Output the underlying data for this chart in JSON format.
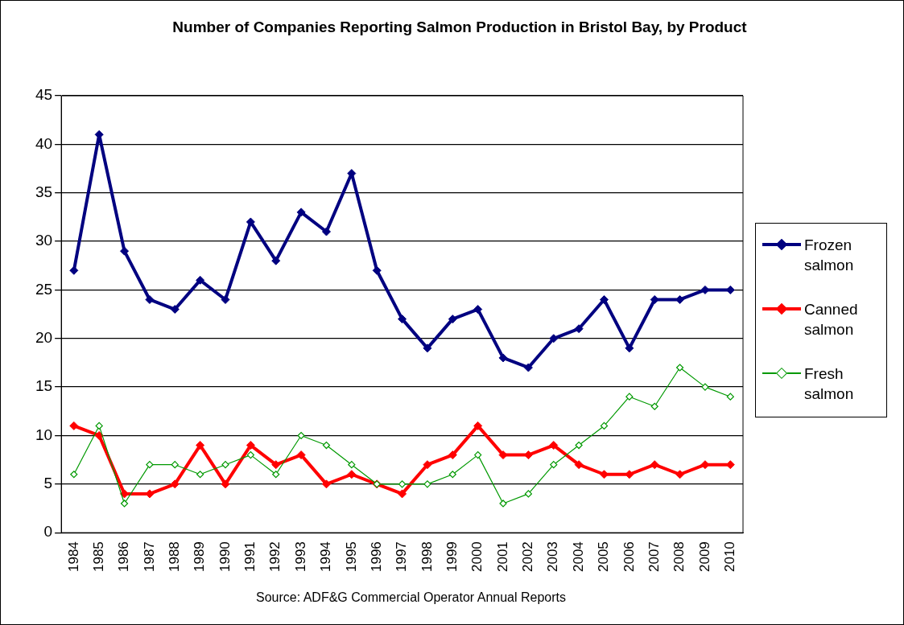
{
  "chart_data": {
    "type": "line",
    "title": "Number of Companies Reporting Salmon Production in Bristol Bay, by Product",
    "categories": [
      "1984",
      "1985",
      "1986",
      "1987",
      "1988",
      "1989",
      "1990",
      "1991",
      "1992",
      "1993",
      "1994",
      "1995",
      "1996",
      "1997",
      "1998",
      "1999",
      "2000",
      "2001",
      "2002",
      "2003",
      "2004",
      "2005",
      "2006",
      "2007",
      "2008",
      "2009",
      "2010"
    ],
    "series": [
      {
        "name": "Frozen salmon",
        "color": "#000080",
        "values": [
          27,
          41,
          29,
          24,
          23,
          26,
          24,
          32,
          28,
          33,
          31,
          37,
          27,
          22,
          19,
          22,
          23,
          18,
          17,
          20,
          21,
          24,
          19,
          24,
          24,
          25,
          25
        ]
      },
      {
        "name": "Canned salmon",
        "color": "#ff0000",
        "values": [
          11,
          10,
          4,
          4,
          5,
          9,
          5,
          9,
          7,
          8,
          5,
          6,
          5,
          4,
          7,
          8,
          11,
          8,
          8,
          9,
          7,
          6,
          6,
          7,
          6,
          7,
          7
        ]
      },
      {
        "name": "Fresh salmon",
        "color": "#009900",
        "values": [
          6,
          11,
          3,
          7,
          7,
          6,
          7,
          8,
          6,
          10,
          9,
          7,
          5,
          5,
          5,
          6,
          8,
          3,
          4,
          7,
          9,
          11,
          14,
          13,
          17,
          15,
          14
        ]
      }
    ],
    "ylim": [
      0,
      45
    ],
    "yticks": [
      0,
      5,
      10,
      15,
      20,
      25,
      30,
      35,
      40,
      45
    ],
    "grid": "y",
    "legend": "right",
    "marker": "diamond",
    "annotations": [
      "Source: ADF&G Commercial Operator Annual Reports"
    ]
  }
}
